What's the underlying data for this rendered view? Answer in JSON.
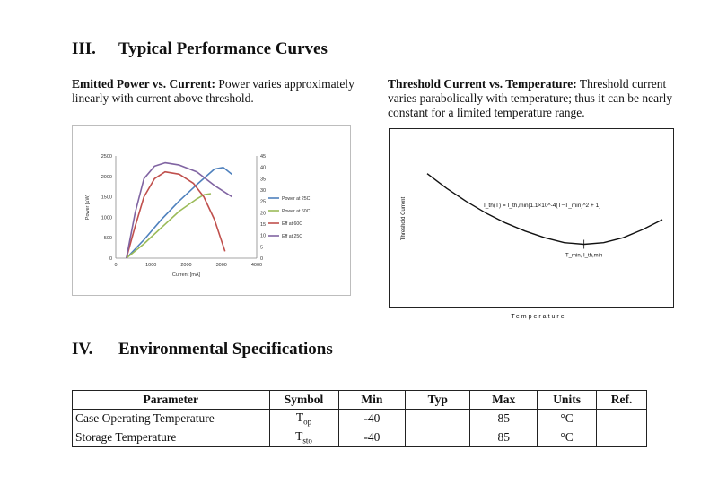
{
  "section3": {
    "num": "III.",
    "title": "Typical Performance Curves"
  },
  "left_caption": {
    "bold": "Emitted Power vs. Current:",
    "text": "Power varies approximately linearly with current above threshold."
  },
  "right_caption": {
    "bold": "Threshold Current vs. Temperature:",
    "text": "Threshold current varies parabolically with temperature; thus it can be nearly constant for a limited temperature range."
  },
  "chart_data": [
    {
      "type": "line",
      "title": "",
      "xlabel": "Current [mA]",
      "ylabel": "Power [uW]",
      "y2label": "",
      "xlim": [
        0,
        4000
      ],
      "ylim": [
        0,
        2500
      ],
      "y2lim": [
        0,
        45
      ],
      "x_ticks": [
        "0",
        "1000",
        "2000",
        "3000",
        "4000"
      ],
      "y_ticks": [
        "0",
        "500",
        "1000",
        "1500",
        "2000",
        "2500"
      ],
      "y2_ticks": [
        "0",
        "5",
        "10",
        "15",
        "20",
        "25",
        "30",
        "35",
        "40",
        "45"
      ],
      "legend_position": "right",
      "series": [
        {
          "name": "Power at 25C",
          "axis": "left",
          "color": "#4f81bd",
          "x": [
            300,
            800,
            1300,
            1800,
            2300,
            2800,
            3050,
            3300
          ],
          "y": [
            0,
            450,
            950,
            1400,
            1800,
            2180,
            2220,
            2050
          ]
        },
        {
          "name": "Power at 60C",
          "axis": "left",
          "color": "#9bbb59",
          "x": [
            300,
            800,
            1300,
            1800,
            2300,
            2500,
            2700
          ],
          "y": [
            0,
            350,
            750,
            1150,
            1450,
            1550,
            1580
          ]
        },
        {
          "name": "Eff at 60C",
          "axis": "right",
          "color": "#c0504d",
          "x": [
            300,
            550,
            800,
            1100,
            1400,
            1800,
            2200,
            2500,
            2800,
            3100
          ],
          "y": [
            0,
            14,
            27,
            35,
            38,
            37,
            33,
            27,
            17,
            3
          ]
        },
        {
          "name": "Eff at 25C",
          "axis": "right",
          "color": "#8064a2",
          "x": [
            300,
            550,
            800,
            1100,
            1400,
            1800,
            2300,
            2800,
            3300
          ],
          "y": [
            0,
            20,
            35,
            40.5,
            42,
            41,
            38,
            32,
            27
          ]
        }
      ]
    },
    {
      "type": "line",
      "title": "",
      "xlabel": "Temperature",
      "ylabel": "Threshold Current",
      "equation": "I_th(T) = I_th,min[1.1×10^-4(T−T_min)^2 + 1]",
      "min_label": "T_min, I_th,min",
      "x_ticks": [],
      "y_ticks": [],
      "series": [
        {
          "name": "Threshold Current",
          "x": [
            -10,
            0,
            10,
            20,
            30,
            40,
            50,
            60,
            70,
            80,
            90,
            100,
            110
          ],
          "y": [
            1.52,
            1.43,
            1.35,
            1.28,
            1.22,
            1.17,
            1.13,
            1.1,
            1.09,
            1.1,
            1.13,
            1.18,
            1.24
          ]
        }
      ]
    }
  ],
  "section4": {
    "num": "IV.",
    "title": "Environmental Specifications"
  },
  "spec_table": {
    "headers": [
      "Parameter",
      "Symbol",
      "Min",
      "Typ",
      "Max",
      "Units",
      "Ref."
    ],
    "rows": [
      {
        "parameter": "Case Operating Temperature",
        "symbol": "T",
        "symbol_sub": "op",
        "min": "-40",
        "typ": "",
        "max": "85",
        "units": "°C",
        "ref": ""
      },
      {
        "parameter": "Storage Temperature",
        "symbol": "T",
        "symbol_sub": "sto",
        "min": "-40",
        "typ": "",
        "max": "85",
        "units": "°C",
        "ref": ""
      }
    ]
  }
}
